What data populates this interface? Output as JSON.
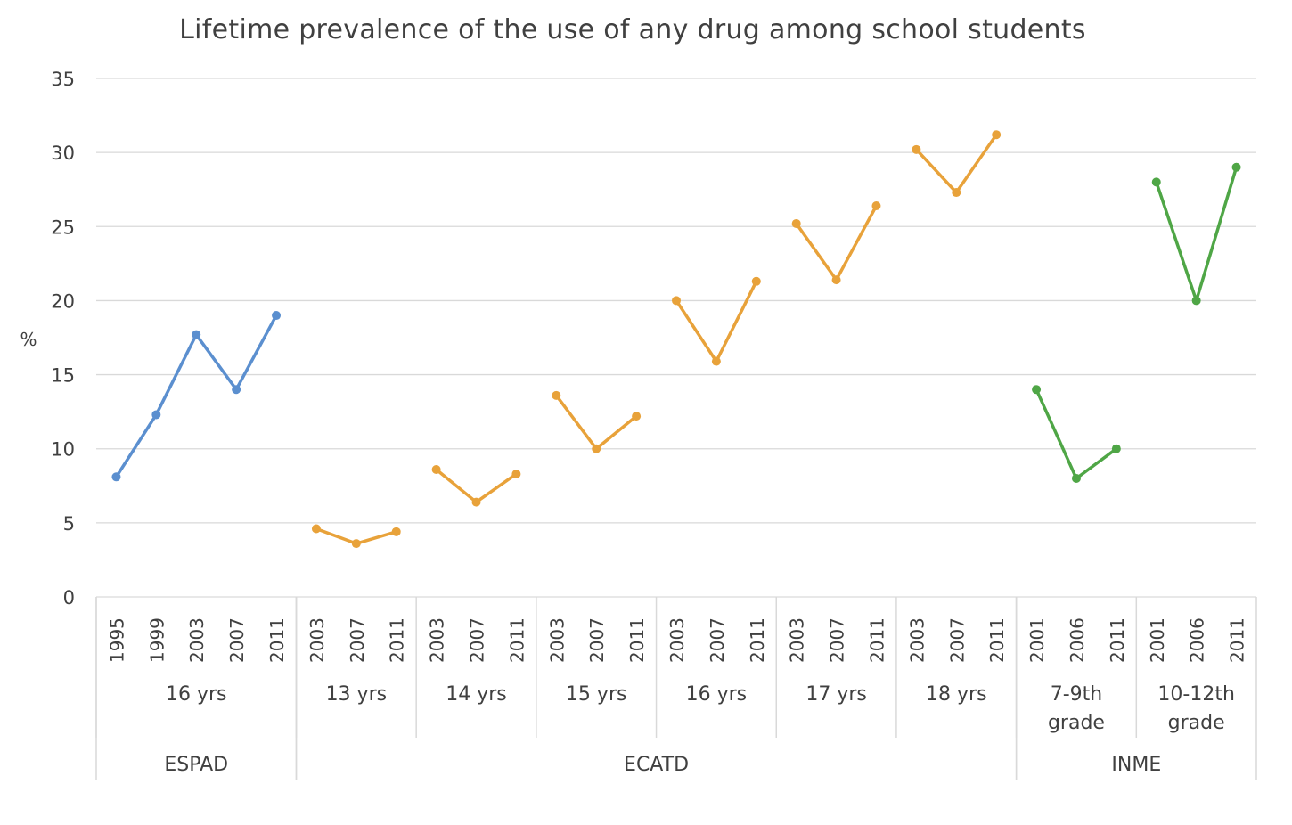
{
  "chart_data": {
    "type": "line",
    "title": "Lifetime prevalence of the use of any drug among school students",
    "ylabel": "%",
    "xlabel": "",
    "ylim": [
      0,
      35
    ],
    "yticks": [
      0,
      5,
      10,
      15,
      20,
      25,
      30,
      35
    ],
    "grid": true,
    "legend": "none",
    "colors": {
      "ESPAD": "#5B8FCF",
      "ECATD": "#E8A23A",
      "INME": "#4FA646",
      "gridline": "#d9d9d9",
      "axis": "#d9d9d9"
    },
    "groups": [
      {
        "survey": "ESPAD",
        "color": "#5B8FCF",
        "subgroups": [
          {
            "label": [
              "16 yrs"
            ],
            "x": [
              "1995",
              "1999",
              "2003",
              "2007",
              "2011"
            ],
            "values": [
              8.1,
              12.3,
              17.7,
              14.0,
              19.0
            ]
          }
        ]
      },
      {
        "survey": "ECATD",
        "color": "#E8A23A",
        "subgroups": [
          {
            "label": [
              "13 yrs"
            ],
            "x": [
              "2003",
              "2007",
              "2011"
            ],
            "values": [
              4.6,
              3.6,
              4.4
            ]
          },
          {
            "label": [
              "14 yrs"
            ],
            "x": [
              "2003",
              "2007",
              "2011"
            ],
            "values": [
              8.6,
              6.4,
              8.3
            ]
          },
          {
            "label": [
              "15 yrs"
            ],
            "x": [
              "2003",
              "2007",
              "2011"
            ],
            "values": [
              13.6,
              10.0,
              12.2
            ]
          },
          {
            "label": [
              "16 yrs"
            ],
            "x": [
              "2003",
              "2007",
              "2011"
            ],
            "values": [
              20.0,
              15.9,
              21.3
            ]
          },
          {
            "label": [
              "17 yrs"
            ],
            "x": [
              "2003",
              "2007",
              "2011"
            ],
            "values": [
              25.2,
              21.4,
              26.4
            ]
          },
          {
            "label": [
              "18 yrs"
            ],
            "x": [
              "2003",
              "2007",
              "2011"
            ],
            "values": [
              30.2,
              27.3,
              31.2
            ]
          }
        ]
      },
      {
        "survey": "INME",
        "color": "#4FA646",
        "subgroups": [
          {
            "label": [
              "7-9th",
              "grade"
            ],
            "x": [
              "2001",
              "2006",
              "2011"
            ],
            "values": [
              14.0,
              8.0,
              10.0
            ]
          },
          {
            "label": [
              "10-12th",
              "grade"
            ],
            "x": [
              "2001",
              "2006",
              "2011"
            ],
            "values": [
              28.0,
              20.0,
              29.0
            ]
          }
        ]
      }
    ]
  }
}
